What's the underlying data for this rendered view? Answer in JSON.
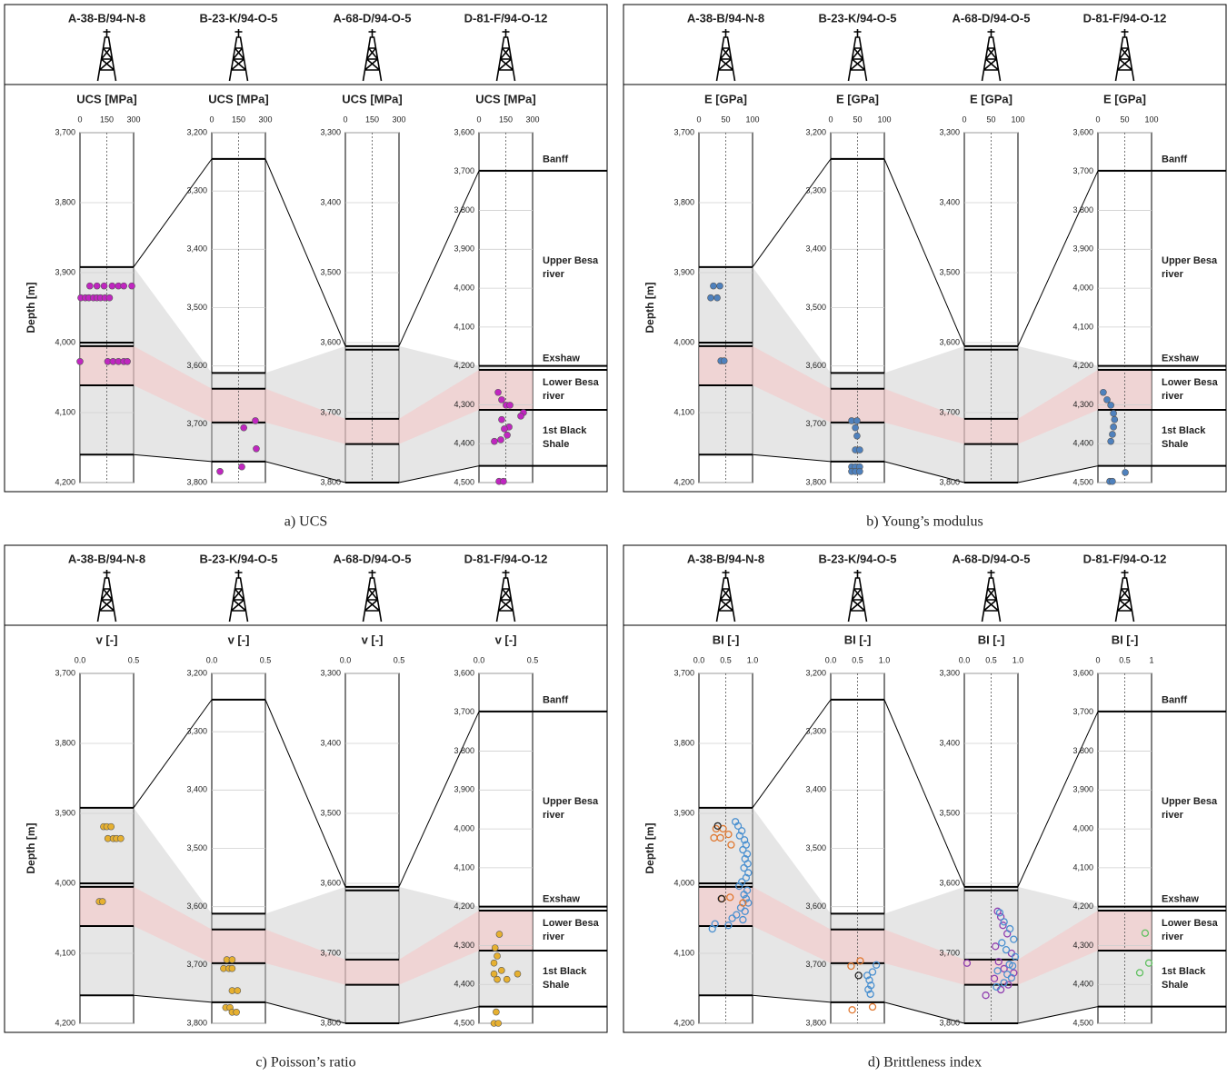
{
  "y_label": "Depth [m]",
  "formations": [
    "Banff",
    "Upper Besa river",
    "Exshaw",
    "Lower Besa river",
    "1st Black Shale"
  ],
  "wells": [
    {
      "name": "A-38-B/94-N-8",
      "ylim": [
        4200,
        3700
      ],
      "yticks": [
        {
          "value": 3700,
          "label": "3,700"
        },
        {
          "value": 3800,
          "label": "3,800"
        },
        {
          "value": 3900,
          "label": "3,900"
        },
        {
          "value": 4000,
          "label": "4,000"
        },
        {
          "value": 4100,
          "label": "4,100"
        },
        {
          "value": 4200,
          "label": "4,200"
        }
      ],
      "tops": [
        3892,
        4000,
        4005,
        4061,
        4160
      ],
      "shade": [
        3892,
        4160
      ]
    },
    {
      "name": "B-23-K/94-O-5",
      "ylim": [
        3800,
        3200
      ],
      "yticks": [
        {
          "value": 3200,
          "label": "3,200"
        },
        {
          "value": 3300,
          "label": "3,300"
        },
        {
          "value": 3400,
          "label": "3,400"
        },
        {
          "value": 3500,
          "label": "3,500"
        },
        {
          "value": 3600,
          "label": "3,600"
        },
        {
          "value": 3700,
          "label": "3,700"
        },
        {
          "value": 3800,
          "label": "3,800"
        }
      ],
      "tops": [
        3245,
        3612,
        3639,
        3697,
        3764
      ],
      "shade": [
        3612,
        3764
      ]
    },
    {
      "name": "A-68-D/94-O-5",
      "ylim": [
        3800,
        3300
      ],
      "yticks": [
        {
          "value": 3300,
          "label": "3,300"
        },
        {
          "value": 3400,
          "label": "3,400"
        },
        {
          "value": 3500,
          "label": "3,500"
        },
        {
          "value": 3600,
          "label": "3,600"
        },
        {
          "value": 3700,
          "label": "3,700"
        },
        {
          "value": 3800,
          "label": "3,800"
        }
      ],
      "tops": [
        3605,
        3610,
        3709,
        3745,
        3800
      ],
      "shade": [
        3605,
        3800
      ]
    },
    {
      "name": "D-81-F/94-O-12",
      "ylim": [
        4500,
        3600
      ],
      "yticks": [
        {
          "value": 3600,
          "label": "3,600"
        },
        {
          "value": 3700,
          "label": "3,700"
        },
        {
          "value": 3800,
          "label": "3,800"
        },
        {
          "value": 3900,
          "label": "3,900"
        },
        {
          "value": 4000,
          "label": "4,000"
        },
        {
          "value": 4100,
          "label": "4,100"
        },
        {
          "value": 4200,
          "label": "4,200"
        },
        {
          "value": 4300,
          "label": "4,300"
        },
        {
          "value": 4400,
          "label": "4,400"
        },
        {
          "value": 4500,
          "label": "4,500"
        }
      ],
      "tops": [
        3698,
        4200,
        4210,
        4313,
        4457
      ],
      "shade": [
        4200,
        4457
      ]
    }
  ],
  "chart_data": [
    {
      "type": "scatter",
      "caption": "a) UCS",
      "track_title": "UCS [MPa]",
      "xlim": [
        0,
        300
      ],
      "xticks": [
        0,
        150,
        300
      ],
      "refline": 150,
      "marker": "filled",
      "tracks": [
        {
          "series": [
            {
              "color": "#c026c0",
              "x": [
                55,
                95,
                135,
                180,
                215,
                245,
                290,
                5,
                30,
                50,
                75,
                95,
                115,
                140,
                165,
                0,
                155,
                185,
                215,
                245,
                265
              ],
              "y": [
                3919,
                3919,
                3919,
                3919,
                3919,
                3919,
                3919,
                3936,
                3936,
                3936,
                3936,
                3936,
                3936,
                3936,
                3936,
                4027,
                4027,
                4027,
                4027,
                4027,
                4027
              ]
            }
          ]
        },
        {
          "series": [
            {
              "color": "#c026c0",
              "x": [
                244,
                179,
                249,
                168,
                46
              ],
              "y": [
                3694,
                3706,
                3742,
                3773,
                3781
              ]
            }
          ]
        },
        {
          "series": []
        },
        {
          "series": [
            {
              "color": "#c026c0",
              "x": [
                107,
                127,
                152,
                173,
                249,
                234,
                127,
                168,
                142,
                158,
                122,
                86,
                112,
                137
              ],
              "y": [
                4268,
                4287,
                4301,
                4301,
                4320,
                4329,
                4338,
                4357,
                4362,
                4378,
                4390,
                4394,
                4497,
                4497
              ]
            }
          ]
        }
      ]
    },
    {
      "type": "scatter",
      "caption": "b) Young’s modulus",
      "track_title": "E [GPa]",
      "xlim": [
        0,
        100
      ],
      "xticks": [
        0,
        50,
        100
      ],
      "refline": 50,
      "marker": "filled",
      "tracks": [
        {
          "series": [
            {
              "color": "#4f81bd",
              "x": [
                27,
                39,
                22,
                34,
                41,
                47
              ],
              "y": [
                3919,
                3919,
                3936,
                3936,
                4026,
                4026
              ]
            }
          ]
        },
        {
          "series": [
            {
              "color": "#4f81bd",
              "x": [
                39,
                49,
                46,
                49,
                46,
                54,
                39,
                46,
                54,
                39,
                46,
                54
              ],
              "y": [
                3694,
                3694,
                3706,
                3720,
                3744,
                3744,
                3773,
                3773,
                3773,
                3781,
                3781,
                3781
              ]
            }
          ]
        },
        {
          "series": []
        },
        {
          "series": [
            {
              "color": "#4f81bd",
              "x": [
                10,
                17,
                24,
                29,
                31,
                29,
                27,
                24,
                51,
                22,
                27
              ],
              "y": [
                4268,
                4287,
                4301,
                4322,
                4338,
                4357,
                4376,
                4394,
                4474,
                4497,
                4497
              ]
            }
          ]
        }
      ]
    },
    {
      "type": "scatter",
      "caption": "c) Poisson’s ratio",
      "track_title": "v [-]",
      "xlim": [
        0,
        0.5
      ],
      "xticks": [
        {
          "value": 0,
          "label": "0.0"
        },
        0.5
      ],
      "marker": "filled",
      "tracks": [
        {
          "series": [
            {
              "color": "#e6b030",
              "x": [
                0.22,
                0.25,
                0.29,
                0.26,
                0.31,
                0.34,
                0.38,
                0.18,
                0.21
              ],
              "y": [
                3919,
                3919,
                3919,
                3936,
                3936,
                3936,
                3936,
                4026,
                4026
              ]
            }
          ]
        },
        {
          "series": [
            {
              "color": "#e6b030",
              "x": [
                0.14,
                0.19,
                0.11,
                0.16,
                0.19,
                0.19,
                0.24,
                0.13,
                0.17,
                0.19,
                0.23
              ],
              "y": [
                3691,
                3691,
                3706,
                3706,
                3706,
                3744,
                3744,
                3773,
                3773,
                3781,
                3781
              ]
            }
          ]
        },
        {
          "series": []
        },
        {
          "series": [
            {
              "color": "#e6b030",
              "x": [
                0.19,
                0.15,
                0.17,
                0.14,
                0.21,
                0.36,
                0.14,
                0.17,
                0.26,
                0.16,
                0.14,
                0.18
              ],
              "y": [
                4271,
                4306,
                4327,
                4345,
                4364,
                4373,
                4373,
                4387,
                4387,
                4471,
                4500,
                4500
              ]
            }
          ]
        }
      ]
    },
    {
      "type": "scatter",
      "caption": "d) Brittleness index",
      "track_title": "BI [-]",
      "xlim": [
        0,
        1
      ],
      "xticks": [
        {
          "value": 0,
          "label": "0.0"
        },
        0.5,
        {
          "value": 1,
          "label": "1.0"
        }
      ],
      "refline": 0.5,
      "marker": "open",
      "tracks": [
        {
          "series": [
            {
              "color": "#4a90d0",
              "x": [
                0.68,
                0.73,
                0.8,
                0.76,
                0.85,
                0.88,
                0.82,
                0.9,
                0.86,
                0.91,
                0.84,
                0.92,
                0.88,
                0.8,
                0.75,
                0.9,
                0.84,
                0.88,
                0.92,
                0.78,
                0.86,
                0.7,
                0.82,
                0.62,
                0.3,
                0.25,
                0.55
              ],
              "y": [
                3912,
                3918,
                3925,
                3932,
                3938,
                3945,
                3952,
                3958,
                3965,
                3972,
                3978,
                3985,
                3992,
                3998,
                4004,
                4010,
                4016,
                4022,
                4028,
                4035,
                4040,
                4045,
                4052,
                4050,
                4058,
                4065,
                4060
              ]
            },
            {
              "color": "#e07830",
              "x": [
                0.32,
                0.45,
                0.55,
                0.28,
                0.4,
                0.6,
                0.43,
                0.58,
                0.82
              ],
              "y": [
                3922,
                3922,
                3930,
                3935,
                3935,
                3945,
                4022,
                4020,
                4028
              ]
            },
            {
              "color": "#222222",
              "x": [
                0.35,
                0.42
              ],
              "y": [
                3918,
                4022
              ]
            }
          ]
        },
        {
          "series": [
            {
              "color": "#4a90d0",
              "x": [
                0.85,
                0.78,
                0.68,
                0.72,
                0.75,
                0.7,
                0.74
              ],
              "y": [
                3700,
                3712,
                3718,
                3726,
                3735,
                3742,
                3750
              ]
            },
            {
              "color": "#e07830",
              "x": [
                0.55,
                0.38,
                0.78,
                0.4
              ],
              "y": [
                3693,
                3702,
                3772,
                3777
              ]
            },
            {
              "color": "#222222",
              "x": [
                0.52
              ],
              "y": [
                3718
              ]
            }
          ]
        },
        {
          "series": [
            {
              "color": "#9040b0",
              "x": [
                0.62,
                0.68,
                0.72,
                0.8,
                0.58,
                0.88,
                0.64,
                0.05,
                0.74,
                0.92,
                0.56,
                0.82,
                0.68,
                0.4
              ],
              "y": [
                3640,
                3648,
                3660,
                3672,
                3690,
                3700,
                3712,
                3714,
                3722,
                3728,
                3736,
                3745,
                3752,
                3760
              ]
            },
            {
              "color": "#4a90d0",
              "x": [
                0.66,
                0.74,
                0.85,
                0.92,
                0.7,
                0.78,
                0.95,
                0.84,
                0.62,
                0.88,
                0.74,
                0.6,
                0.9,
                0.8
              ],
              "y": [
                3642,
                3655,
                3665,
                3680,
                3685,
                3695,
                3705,
                3716,
                3725,
                3735,
                3742,
                3748,
                3718,
                3730
              ]
            }
          ]
        },
        {
          "xticks": [
            0,
            0.5,
            1
          ],
          "series": [
            {
              "color": "#60c060",
              "x": [
                0.88,
                0.95,
                0.78
              ],
              "y": [
                4268,
                4345,
                4370
              ]
            }
          ]
        }
      ]
    }
  ]
}
